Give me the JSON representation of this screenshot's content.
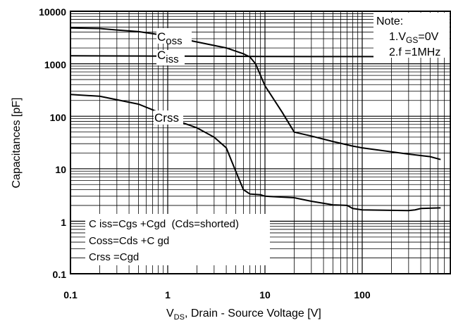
{
  "chart_data": {
    "type": "line",
    "xlabel": {
      "main": "V",
      "sub": "DS",
      "rest": ", Drain - Source Voltage [V]"
    },
    "ylabel": "Capacitances [pF]",
    "xscale": "log",
    "yscale": "log",
    "xlim": [
      0.1,
      1000
    ],
    "ylim": [
      0.1,
      10000
    ],
    "x_ticks": [
      "0.1",
      "1",
      "10",
      "100"
    ],
    "y_ticks": [
      "10000",
      "1000",
      "100",
      "10",
      "1",
      "0.1"
    ],
    "grid": true,
    "series": [
      {
        "name": "Coss",
        "points": [
          [
            0.1,
            4800
          ],
          [
            0.2,
            4700
          ],
          [
            0.3,
            4400
          ],
          [
            0.5,
            4100
          ],
          [
            1,
            3400
          ],
          [
            2,
            2600
          ],
          [
            4,
            2000
          ],
          [
            6,
            1550
          ],
          [
            7,
            1350
          ],
          [
            8,
            1000
          ],
          [
            9,
            600
          ],
          [
            10,
            380
          ],
          [
            15,
            120
          ],
          [
            20,
            50
          ],
          [
            30,
            42
          ],
          [
            50,
            33
          ],
          [
            80,
            27
          ],
          [
            100,
            25
          ],
          [
            200,
            21
          ],
          [
            300,
            19
          ],
          [
            500,
            17
          ],
          [
            640,
            15
          ]
        ]
      },
      {
        "name": "Ciss",
        "points": [
          [
            0.1,
            1420
          ],
          [
            0.3,
            1410
          ],
          [
            1,
            1400
          ],
          [
            3,
            1390
          ],
          [
            10,
            1380
          ],
          [
            30,
            1370
          ],
          [
            100,
            1370
          ],
          [
            640,
            1360
          ]
        ]
      },
      {
        "name": "Crss",
        "points": [
          [
            0.1,
            260
          ],
          [
            0.2,
            240
          ],
          [
            0.5,
            170
          ],
          [
            0.8,
            120
          ],
          [
            1,
            95
          ],
          [
            2,
            60
          ],
          [
            3,
            40
          ],
          [
            4,
            25
          ],
          [
            5,
            9
          ],
          [
            6,
            4
          ],
          [
            7,
            3.3
          ],
          [
            9,
            3.2
          ],
          [
            10,
            3
          ],
          [
            20,
            2.8
          ],
          [
            30,
            2.4
          ],
          [
            50,
            2.05
          ],
          [
            70,
            2
          ],
          [
            80,
            1.75
          ],
          [
            100,
            1.65
          ],
          [
            300,
            1.6
          ],
          [
            350,
            1.65
          ],
          [
            400,
            1.75
          ],
          [
            640,
            1.8
          ]
        ]
      }
    ],
    "curve_labels": [
      {
        "main": "C",
        "sub": "oss"
      },
      {
        "main": "C",
        "sub": "iss"
      },
      {
        "main": "Crss"
      }
    ],
    "note": {
      "title": "Note:",
      "line1": {
        "prefix": "1.V",
        "sub": "GS",
        "rest": "=0V"
      },
      "line2": "2.f =1MHz"
    },
    "equations": [
      {
        "text": "C iss=Cgs +Cgd  (Cds=shorted)"
      },
      {
        "text": "Coss=Cds +C gd"
      },
      {
        "text": "Crss =Cgd"
      }
    ]
  }
}
